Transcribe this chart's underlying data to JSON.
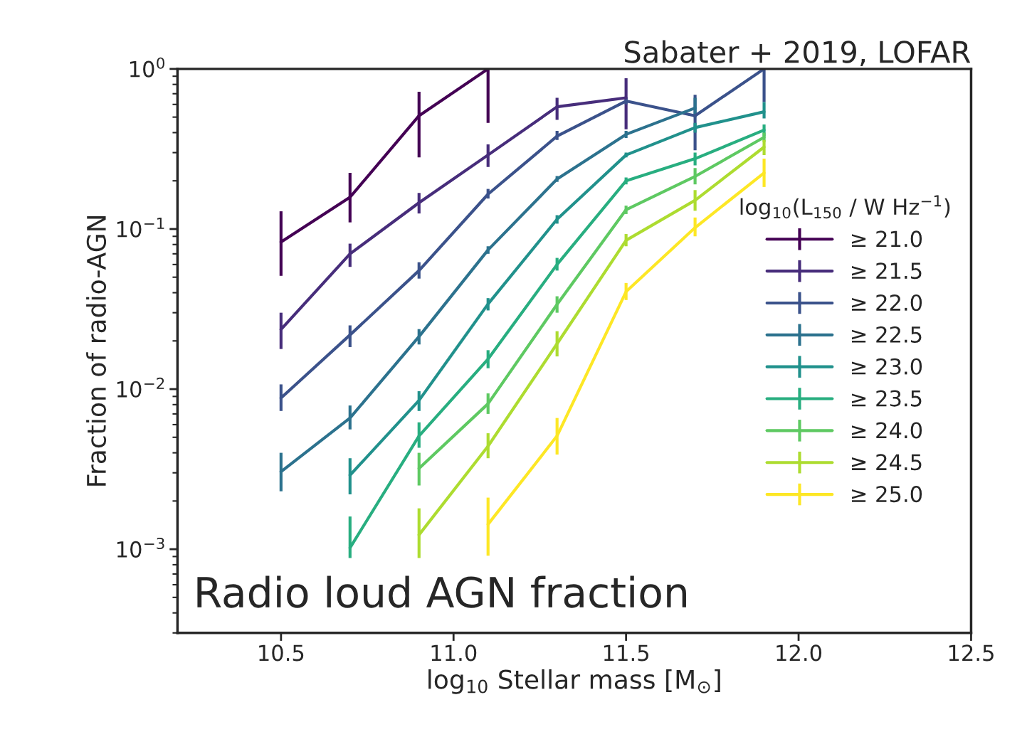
{
  "chart_data": {
    "type": "line",
    "title": "Sabater + 2019, LOFAR",
    "xlabel": "log$_{10}$ Stellar mass [M$_{⊙}$]",
    "ylabel": "Fraction of radio-AGN",
    "legend_title": "log$_{10}$(L$_{150}$ / W Hz$^{−1}$)",
    "annotations": [
      "Radio loud AGN fraction"
    ],
    "log": "y",
    "legend": "right",
    "grid": false,
    "marker": "none",
    "line_style": "solid",
    "xlim": [
      10.2,
      12.5
    ],
    "xticks": [
      {
        "value": 10.5,
        "label": "10.5"
      },
      {
        "value": 11,
        "label": "11.0"
      },
      {
        "value": 11.5,
        "label": "11.5"
      },
      {
        "value": 12,
        "label": "12.0"
      },
      {
        "value": 12.5,
        "label": "12.5"
      }
    ],
    "ylim": [
      0.0003,
      1
    ],
    "yticks": [
      {
        "value": 0.001,
        "label": "10$^{−3}$"
      },
      {
        "value": 0.01,
        "label": "10$^{−2}$"
      },
      {
        "value": 0.1,
        "label": "10$^{−1}$"
      },
      {
        "value": 1,
        "label": "10$^{0}$"
      }
    ],
    "series": [
      {
        "name": "≥ 21.0",
        "color": "#440154",
        "x": [
          10.5,
          10.7,
          10.9,
          11.1
        ],
        "values": [
          0.083,
          0.158,
          0.51,
          1.0
        ],
        "errors": [
          [
            0.051,
            0.129
          ],
          [
            0.11,
            0.224
          ],
          [
            0.28,
            0.72
          ],
          [
            0.46,
            1.0
          ]
        ]
      },
      {
        "name": "≥ 21.5",
        "color": "#472d7b",
        "x": [
          10.5,
          10.7,
          10.9,
          11.1,
          11.3,
          11.5
        ],
        "values": [
          0.0236,
          0.07,
          0.146,
          0.29,
          0.58,
          0.66
        ],
        "errors": [
          [
            0.0178,
            0.03
          ],
          [
            0.058,
            0.081
          ],
          [
            0.125,
            0.168
          ],
          [
            0.244,
            0.338
          ],
          [
            0.48,
            0.66
          ],
          [
            0.42,
            0.875
          ]
        ]
      },
      {
        "name": "≥ 22.0",
        "color": "#3b528b",
        "x": [
          10.5,
          10.7,
          10.9,
          11.1,
          11.3,
          11.5,
          11.7,
          11.9
        ],
        "values": [
          0.0088,
          0.0218,
          0.055,
          0.165,
          0.38,
          0.63,
          0.51,
          1.0
        ],
        "errors": [
          [
            0.0073,
            0.0107
          ],
          [
            0.0183,
            0.025
          ],
          [
            0.049,
            0.062
          ],
          [
            0.155,
            0.178
          ],
          [
            0.36,
            0.41
          ],
          [
            0.6,
            0.66
          ],
          [
            0.31,
            0.69
          ],
          [
            0.62,
            1.0
          ]
        ]
      },
      {
        "name": "≥ 22.5",
        "color": "#2c728e",
        "x": [
          10.5,
          10.7,
          10.9,
          11.1,
          11.3,
          11.5,
          11.7
        ],
        "values": [
          0.00305,
          0.0066,
          0.0213,
          0.074,
          0.205,
          0.39,
          0.57
        ],
        "errors": [
          [
            0.0023,
            0.004
          ],
          [
            0.0056,
            0.0079
          ],
          [
            0.019,
            0.0237
          ],
          [
            0.07,
            0.078
          ],
          [
            0.197,
            0.214
          ],
          [
            0.37,
            0.41
          ],
          [
            0.5,
            0.66
          ]
        ]
      },
      {
        "name": "≥ 23.0",
        "color": "#21918c",
        "x": [
          10.7,
          10.9,
          11.1,
          11.3,
          11.5,
          11.7,
          11.9
        ],
        "values": [
          0.0029,
          0.0085,
          0.034,
          0.115,
          0.29,
          0.43,
          0.54
        ],
        "errors": [
          [
            0.0022,
            0.0037
          ],
          [
            0.0073,
            0.0097
          ],
          [
            0.031,
            0.037
          ],
          [
            0.108,
            0.122
          ],
          [
            0.28,
            0.3
          ],
          [
            0.4,
            0.46
          ],
          [
            0.49,
            0.62
          ]
        ]
      },
      {
        "name": "≥ 23.5",
        "color": "#28ae80",
        "x": [
          10.7,
          10.9,
          11.1,
          11.3,
          11.5,
          11.7,
          11.9
        ],
        "values": [
          0.00102,
          0.0051,
          0.0154,
          0.06,
          0.2,
          0.275,
          0.415
        ],
        "errors": [
          [
            0.00088,
            0.0016
          ],
          [
            0.0043,
            0.0062
          ],
          [
            0.0135,
            0.0175
          ],
          [
            0.055,
            0.066
          ],
          [
            0.19,
            0.21
          ],
          [
            0.25,
            0.3
          ],
          [
            0.38,
            0.45
          ]
        ]
      },
      {
        "name": "≥ 24.0",
        "color": "#5ec962",
        "x": [
          10.9,
          11.1,
          11.3,
          11.5,
          11.7,
          11.9
        ],
        "values": [
          0.0032,
          0.0081,
          0.0338,
          0.132,
          0.213,
          0.374
        ],
        "errors": [
          [
            0.0025,
            0.004
          ],
          [
            0.007,
            0.0094
          ],
          [
            0.03,
            0.038
          ],
          [
            0.124,
            0.14
          ],
          [
            0.19,
            0.24
          ],
          [
            0.35,
            0.4
          ]
        ]
      },
      {
        "name": "≥ 24.5",
        "color": "#addc30",
        "x": [
          10.9,
          11.1,
          11.3,
          11.5,
          11.7,
          11.9
        ],
        "values": [
          0.00123,
          0.0044,
          0.0192,
          0.085,
          0.151,
          0.325
        ],
        "errors": [
          [
            0.00088,
            0.0018
          ],
          [
            0.0037,
            0.0053
          ],
          [
            0.016,
            0.023
          ],
          [
            0.078,
            0.093
          ],
          [
            0.13,
            0.175
          ],
          [
            0.29,
            0.36
          ]
        ]
      },
      {
        "name": "≥ 25.0",
        "color": "#fde725",
        "x": [
          11.1,
          11.3,
          11.5,
          11.7,
          11.9
        ],
        "values": [
          0.00143,
          0.0051,
          0.0406,
          0.102,
          0.224
        ],
        "errors": [
          [
            0.00091,
            0.0021
          ],
          [
            0.0039,
            0.0066
          ],
          [
            0.036,
            0.046
          ],
          [
            0.09,
            0.118
          ],
          [
            0.183,
            0.275
          ]
        ]
      }
    ]
  }
}
